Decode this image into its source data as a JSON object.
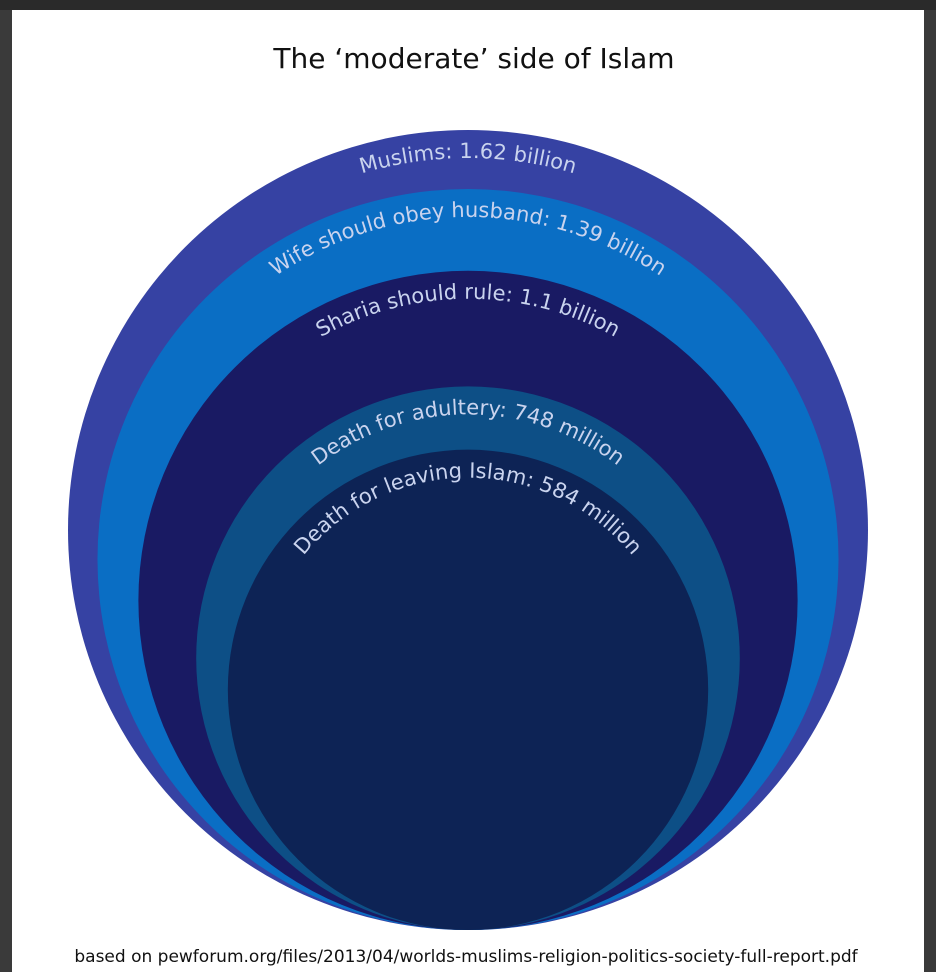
{
  "chart_data": {
    "type": "nested-circles",
    "title": "The ‘moderate’ side of Islam",
    "unit": "people",
    "series": [
      {
        "label": "Muslims: 1.62 billion",
        "value": 1620000000,
        "color": "#3642a3"
      },
      {
        "label": "Wife should obey husband: 1.39 billion",
        "value": 1390000000,
        "color": "#0a6ec4"
      },
      {
        "label": "Sharia should rule: 1.1 billion",
        "value": 1100000000,
        "color": "#191a63"
      },
      {
        "label": "Death for adultery: 748 million",
        "value": 748000000,
        "color": "#0d4f86"
      },
      {
        "label": "Death for leaving Islam: 584 million",
        "value": 584000000,
        "color": "#0d2355"
      }
    ],
    "source_note": "based on pewforum.org/files/2013/04/worlds-muslims-religion-politics-society-full-report.pdf"
  }
}
